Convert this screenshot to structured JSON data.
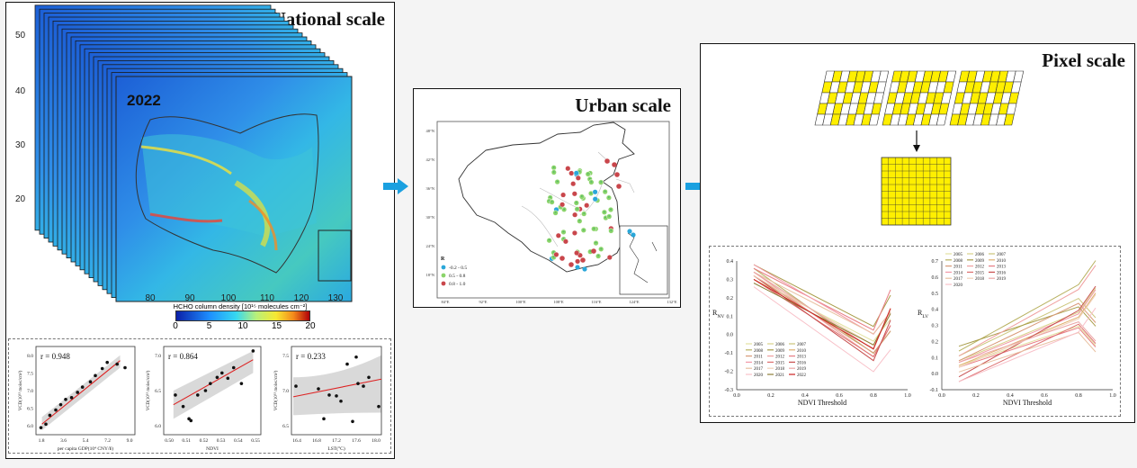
{
  "national": {
    "title": "National scale",
    "year_label": "2022",
    "lat_ticks": [
      "50",
      "40",
      "30",
      "20"
    ],
    "lon_ticks": [
      "80",
      "90",
      "100",
      "110",
      "120",
      "130"
    ],
    "colorbar_label": "HCHO column density [10¹⁵ molecules cm⁻²]",
    "colorbar_ticks": [
      "0",
      "5",
      "10",
      "15",
      "20"
    ],
    "scatter_panels": [
      {
        "r": "r = 0.948",
        "xlabel": "per capita GDP(10⁴ CNY/¥)",
        "ylabel": "VCD(10¹⁵ molec/cm²)",
        "xticks": [
          "1.8",
          "3.6",
          "5.4",
          "7.2",
          "9.0"
        ],
        "yticks": [
          "8.0",
          "7.5",
          "7.0",
          "6.5",
          "6.0"
        ]
      },
      {
        "r": "r = 0.864",
        "xlabel": "NDVI",
        "ylabel": "VCD(10¹⁵ molec/cm²)",
        "xticks": [
          "0.50",
          "0.51",
          "0.52",
          "0.53",
          "0.54",
          "0.55"
        ],
        "yticks": [
          "7.0",
          "6.5",
          "6.0"
        ]
      },
      {
        "r": "r = 0.233",
        "xlabel": "LST(°C)",
        "ylabel": "VCD(10¹⁵ molec/cm²)",
        "xticks": [
          "16.4",
          "16.8",
          "17.2",
          "17.6",
          "18.0"
        ],
        "yticks": [
          "7.5",
          "7.0",
          "6.5"
        ]
      }
    ]
  },
  "urban": {
    "title": "Urban scale",
    "legend_title": "R",
    "legend_items": [
      {
        "label": "-0.2 - 0.5",
        "color": "#2aa7d9"
      },
      {
        "label": "0.5 - 0.8",
        "color": "#8bd46a"
      },
      {
        "label": "0.8 - 1.0",
        "color": "#c9464b"
      }
    ],
    "lat_ticks": [
      "48°N",
      "42°N",
      "36°N",
      "30°N",
      "24°N",
      "18°N"
    ],
    "lon_ticks": [
      "84°E",
      "92°E",
      "100°E",
      "108°E",
      "116°E",
      "124°E",
      "132°E"
    ]
  },
  "pixel": {
    "title": "Pixel scale",
    "grid_color": "#ffef00",
    "left_chart": {
      "ylabel_main": "R",
      "ylabel_sub": "NV",
      "xlabel": "NDVI Threshold",
      "xticks": [
        "0.0",
        "0.2",
        "0.4",
        "0.6",
        "0.8",
        "1.0"
      ],
      "yticks": [
        "0.4",
        "0.3",
        "0.2",
        "0.1",
        "0.0",
        "-0.1",
        "-0.2",
        "-0.3"
      ],
      "legend": [
        "2005",
        "2006",
        "2007",
        "2008",
        "2009",
        "2010",
        "2011",
        "2012",
        "2013",
        "2014",
        "2015",
        "2016",
        "2017",
        "2018",
        "2019",
        "2020",
        "2021",
        "2022"
      ]
    },
    "right_chart": {
      "ylabel_main": "R",
      "ylabel_sub": "LV",
      "xlabel": "NDVI Threshold",
      "xticks": [
        "0.0",
        "0.2",
        "0.4",
        "0.6",
        "0.8",
        "1.0"
      ],
      "yticks": [
        "0.7",
        "0.6",
        "0.5",
        "0.4",
        "0.3",
        "0.2",
        "0.1",
        "0.0",
        "-0.1"
      ],
      "legend": [
        "2005",
        "2006",
        "2007",
        "2008",
        "2009",
        "2010",
        "2011",
        "2012",
        "2013",
        "2014",
        "2015",
        "2016",
        "2017",
        "2018",
        "2019",
        "2020"
      ]
    }
  },
  "colors": {
    "arrow": "#1aa0e0",
    "red_line": "#d22",
    "ci_band": "#cfcfcf"
  }
}
